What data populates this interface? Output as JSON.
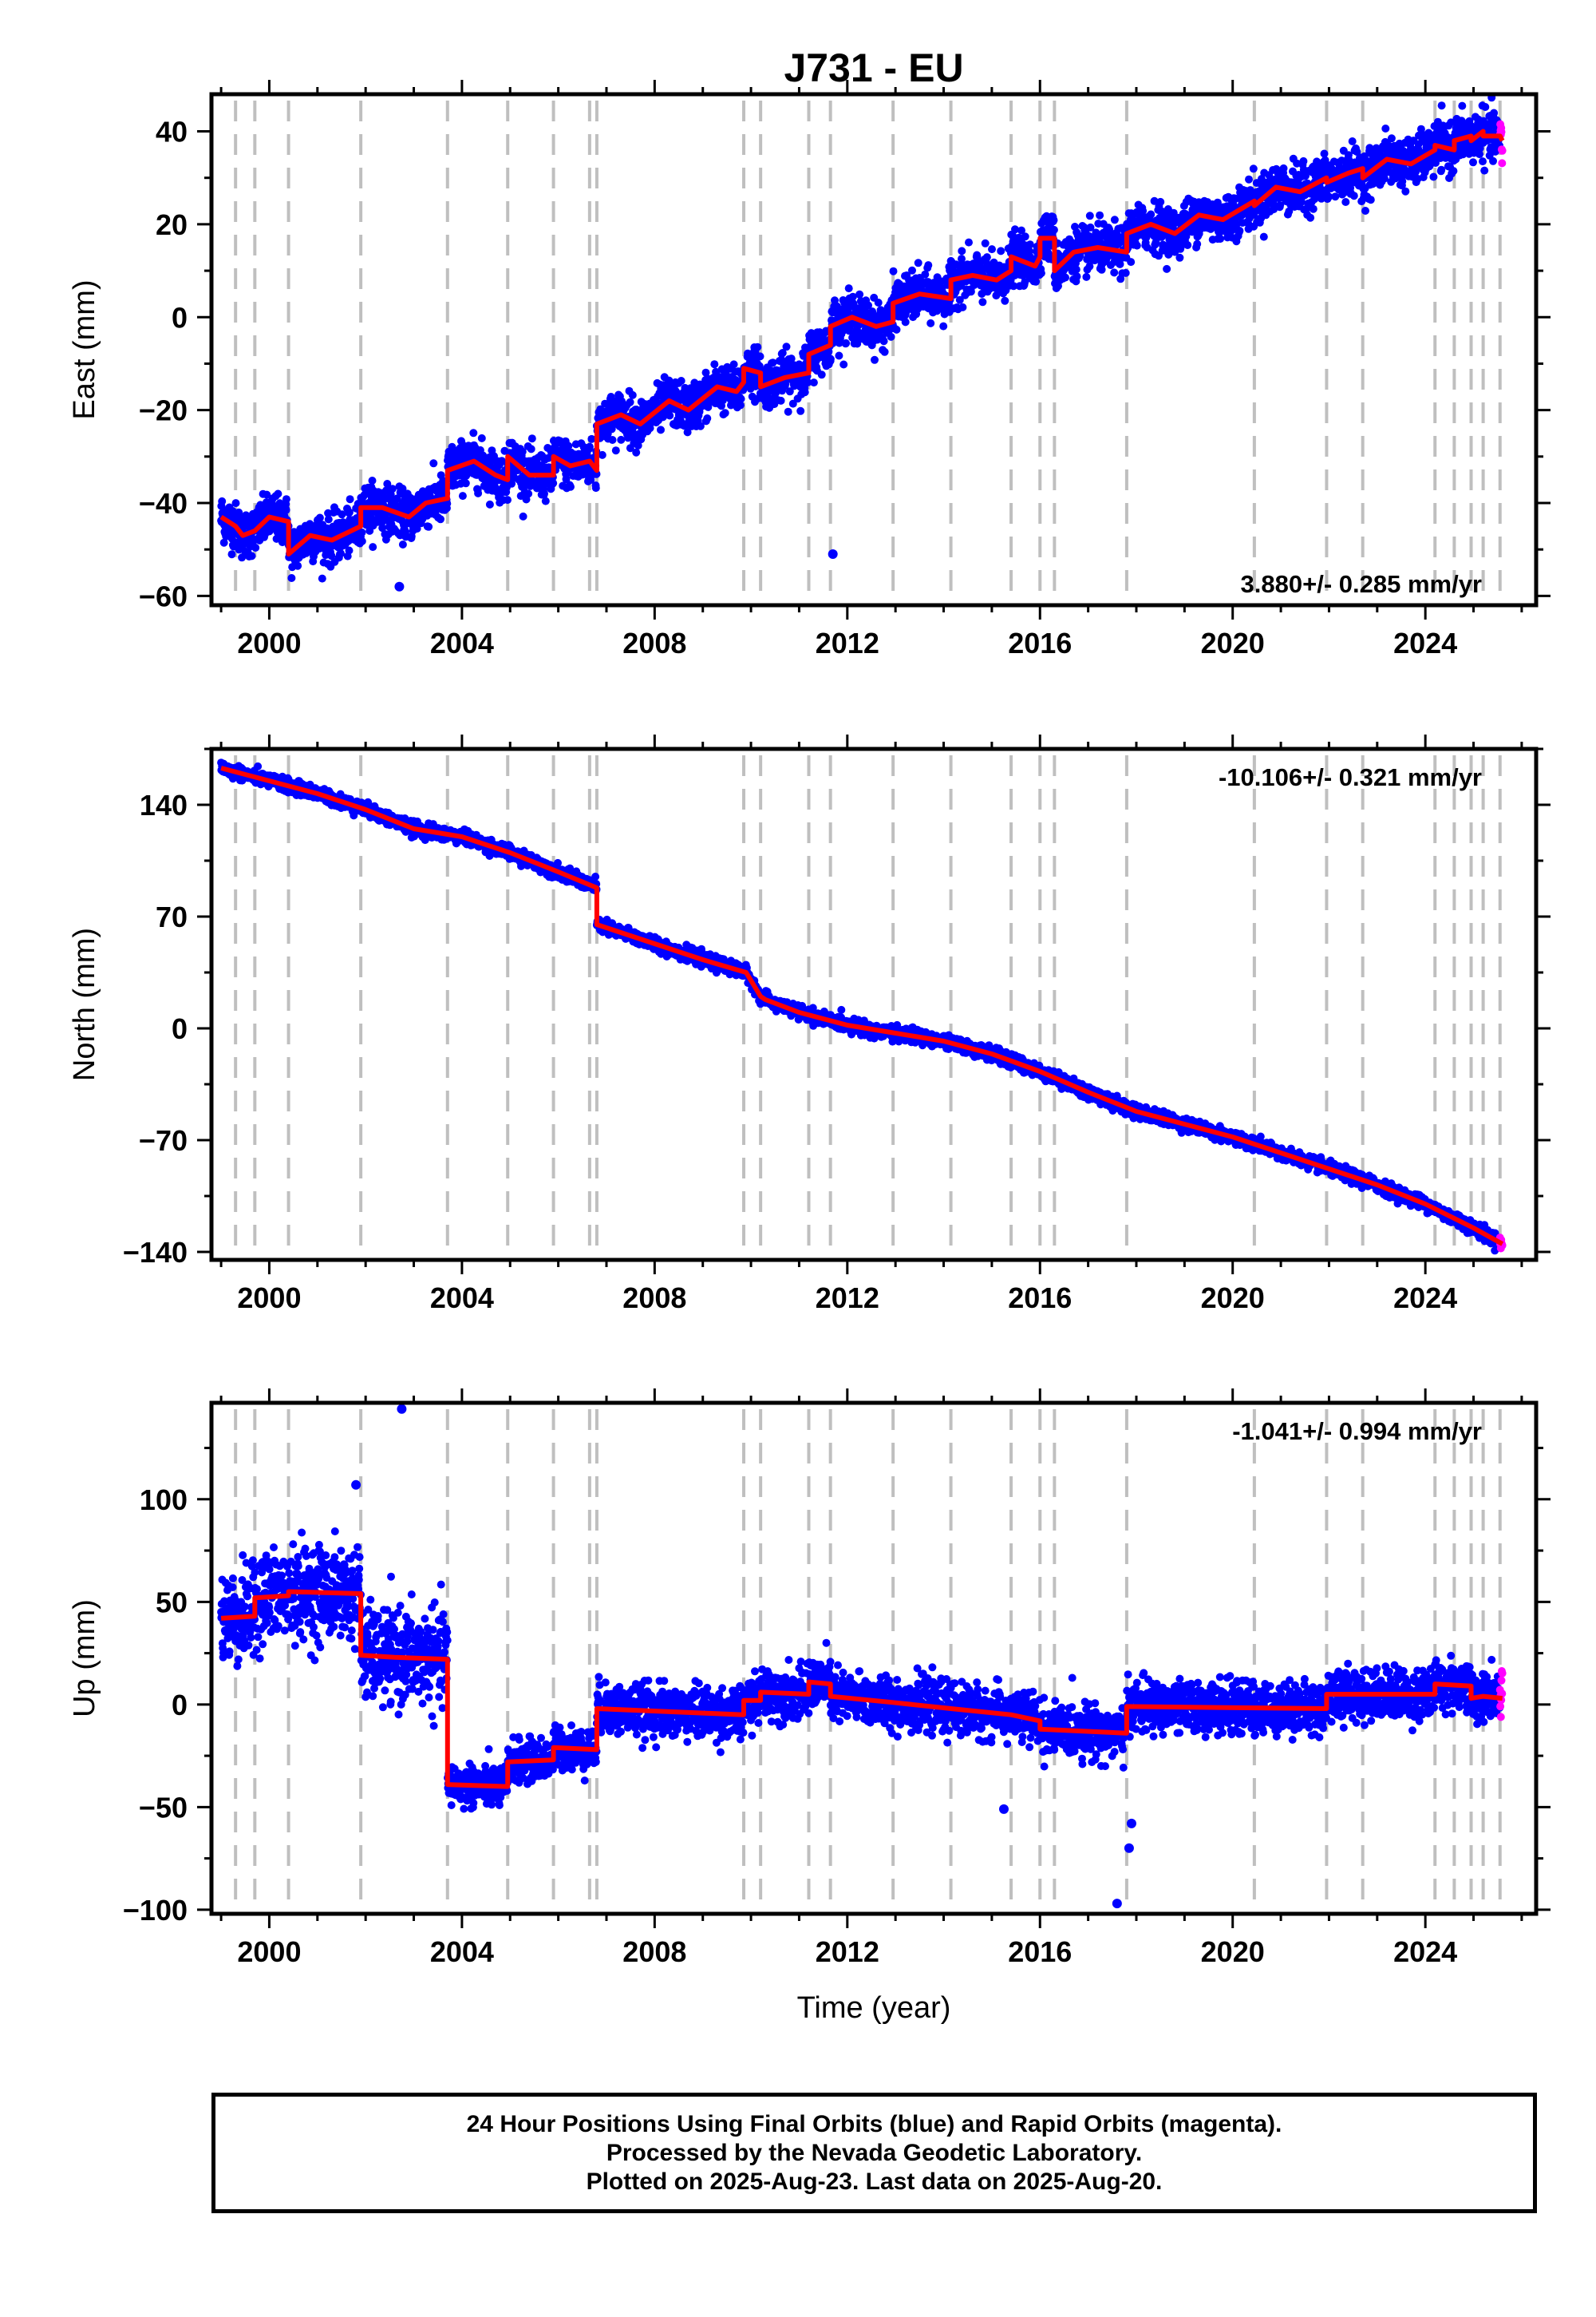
{
  "title": "J731 - EU",
  "colors": {
    "final_orbits": "#0000ff",
    "rapid_orbits": "#ff00ff",
    "model": "#ff0000",
    "event_lines": "#bfbfbf",
    "frame": "#000000"
  },
  "event_lines_years": [
    1999.3,
    1999.7,
    2000.4,
    2001.9,
    2003.7,
    2004.95,
    2005.9,
    2006.65,
    2006.8,
    2009.85,
    2010.2,
    2011.2,
    2011.65,
    2012.95,
    2014.15,
    2015.4,
    2016.0,
    2016.3,
    2017.8,
    2020.45,
    2021.95,
    2022.7,
    2024.2,
    2024.6,
    2024.95,
    2025.2,
    2025.55
  ],
  "info_box": {
    "lines": [
      "24 Hour Positions Using Final Orbits (blue) and Rapid Orbits (magenta).",
      "Processed by the Nevada Geodetic Laboratory.",
      "Plotted on 2025-Aug-23. Last data on 2025-Aug-20."
    ]
  },
  "chart_data": [
    {
      "type": "scatter",
      "ylabel": "East (mm)",
      "xlabel": "",
      "rate_label": "3.880+/- 0.285 mm/yr",
      "rate_position": "bottom-right",
      "xlim": [
        1998.8,
        2026.3
      ],
      "ylim": [
        -62,
        48
      ],
      "x_ticks": [
        2000,
        2004,
        2008,
        2012,
        2016,
        2020,
        2024
      ],
      "y_ticks": [
        -60,
        -40,
        -20,
        0,
        20,
        40
      ],
      "y_tick_labels": [
        "−60",
        "−40",
        "−20",
        "0",
        "20",
        "40"
      ],
      "grid": false,
      "model_line": {
        "x": [
          1999.0,
          1999.3,
          1999.45,
          1999.7,
          2000.0,
          2000.4,
          2000.4,
          2000.85,
          2001.3,
          2001.9,
          2001.9,
          2002.35,
          2002.9,
          2003.25,
          2003.7,
          2003.7,
          2004.25,
          2004.7,
          2004.95,
          2004.95,
          2005.4,
          2005.9,
          2005.9,
          2006.25,
          2006.65,
          2006.8,
          2006.8,
          2007.3,
          2007.7,
          2008.3,
          2008.7,
          2009.3,
          2009.7,
          2009.85,
          2009.85,
          2010.2,
          2010.2,
          2010.7,
          2011.2,
          2011.2,
          2011.65,
          2011.65,
          2012.1,
          2012.6,
          2012.95,
          2012.95,
          2013.5,
          2014.15,
          2014.15,
          2014.6,
          2015.1,
          2015.4,
          2015.4,
          2015.9,
          2016.0,
          2016.0,
          2016.3,
          2016.3,
          2016.7,
          2017.2,
          2017.8,
          2017.8,
          2018.3,
          2018.8,
          2019.3,
          2019.8,
          2020.45,
          2020.45,
          2020.9,
          2021.4,
          2021.95,
          2021.95,
          2022.4,
          2022.7,
          2022.7,
          2023.2,
          2023.7,
          2024.2,
          2024.2,
          2024.6,
          2024.6,
          2024.95,
          2024.95,
          2025.2,
          2025.2,
          2025.55,
          2025.6
        ],
        "y": [
          -43,
          -45,
          -47,
          -46,
          -43,
          -44,
          -51,
          -47,
          -48,
          -45,
          -41,
          -41,
          -43,
          -40,
          -39,
          -33,
          -31,
          -34,
          -35,
          -30,
          -34,
          -34,
          -30,
          -32,
          -31,
          -33,
          -23,
          -21,
          -23,
          -18,
          -20,
          -15,
          -16,
          -14,
          -11,
          -12,
          -15,
          -13,
          -12,
          -8,
          -6,
          -2,
          0,
          -2,
          -1,
          3,
          5,
          4,
          8,
          9,
          8,
          10,
          13,
          11,
          13,
          17,
          17,
          10,
          14,
          15,
          14,
          18,
          20,
          18,
          22,
          21,
          25,
          24,
          28,
          27,
          30,
          29,
          31,
          32,
          30,
          34,
          33,
          36,
          37,
          36,
          38,
          39,
          38,
          40,
          39,
          39,
          38
        ]
      },
      "noise": 2.5,
      "outliers": [
        {
          "x": 2002.7,
          "y": -58
        },
        {
          "x": 2011.7,
          "y": -51
        }
      ]
    },
    {
      "type": "scatter",
      "ylabel": "North (mm)",
      "xlabel": "",
      "rate_label": "-10.106+/- 0.321 mm/yr",
      "rate_position": "top-right",
      "xlim": [
        1998.8,
        2026.3
      ],
      "ylim": [
        -145,
        175
      ],
      "x_ticks": [
        2000,
        2004,
        2008,
        2012,
        2016,
        2020,
        2024
      ],
      "y_ticks": [
        -140,
        -70,
        0,
        70,
        140
      ],
      "y_tick_labels": [
        "−140",
        "−70",
        "0",
        "70",
        "140"
      ],
      "grid": false,
      "model_line": {
        "x": [
          1999.0,
          2000.0,
          2001.0,
          2002.0,
          2003.0,
          2004.0,
          2005.0,
          2006.0,
          2006.8,
          2006.8,
          2008.0,
          2009.0,
          2009.9,
          2010.2,
          2010.3,
          2011.0,
          2012.0,
          2013.0,
          2014.0,
          2015.0,
          2016.0,
          2017.0,
          2018.0,
          2019.0,
          2020.0,
          2021.0,
          2022.0,
          2023.0,
          2024.0,
          2025.0,
          2025.6
        ],
        "y": [
          163,
          155,
          147,
          137,
          125,
          120,
          110,
          98,
          88,
          65,
          53,
          43,
          35,
          20,
          18,
          10,
          2,
          -3,
          -8,
          -16,
          -27,
          -40,
          -52,
          -60,
          -68,
          -78,
          -88,
          -98,
          -110,
          -125,
          -135
        ]
      },
      "noise": 2.0,
      "outliers": []
    },
    {
      "type": "scatter",
      "ylabel": "Up (mm)",
      "xlabel": "Time (year)",
      "rate_label": "-1.041+/- 0.994 mm/yr",
      "rate_position": "top-right",
      "xlim": [
        1998.8,
        2026.3
      ],
      "ylim": [
        -102,
        147
      ],
      "x_ticks": [
        2000,
        2004,
        2008,
        2012,
        2016,
        2020,
        2024
      ],
      "y_ticks": [
        -100,
        -50,
        0,
        50,
        100
      ],
      "y_tick_labels": [
        "−100",
        "−50",
        "0",
        "50",
        "100"
      ],
      "grid": false,
      "model_line": {
        "x": [
          1999.0,
          1999.7,
          1999.7,
          2000.4,
          2000.4,
          2001.9,
          2001.9,
          2002.6,
          2003.7,
          2003.7,
          2004.95,
          2004.95,
          2005.9,
          2005.9,
          2006.8,
          2006.8,
          2009.85,
          2009.85,
          2010.2,
          2010.2,
          2011.2,
          2011.2,
          2011.65,
          2011.65,
          2012.95,
          2014.15,
          2015.4,
          2016.0,
          2016.0,
          2017.8,
          2017.8,
          2021.95,
          2021.95,
          2024.2,
          2024.2,
          2024.95,
          2024.95,
          2025.2,
          2025.2,
          2025.6
        ],
        "y": [
          42,
          43,
          52,
          53,
          55,
          54,
          24,
          23,
          22,
          -39,
          -40,
          -28,
          -27,
          -21,
          -22,
          -2,
          -5,
          2,
          2,
          6,
          5,
          11,
          10,
          4,
          1,
          -2,
          -5,
          -8,
          -12,
          -14,
          -1,
          -2,
          5,
          5,
          10,
          9,
          3,
          4,
          4,
          3
        ],
        "noise_override": [
          [
            1999.0,
            2001.9,
            11
          ],
          [
            2001.9,
            2003.7,
            11
          ],
          [
            2003.7,
            2006.8,
            5
          ]
        ]
      },
      "noise": 6.0,
      "outliers": [
        {
          "x": 2002.75,
          "y": 144
        },
        {
          "x": 2001.8,
          "y": 107
        },
        {
          "x": 2017.6,
          "y": -97
        },
        {
          "x": 2017.85,
          "y": -70
        },
        {
          "x": 2015.25,
          "y": -51
        },
        {
          "x": 2017.9,
          "y": -58
        }
      ]
    }
  ]
}
